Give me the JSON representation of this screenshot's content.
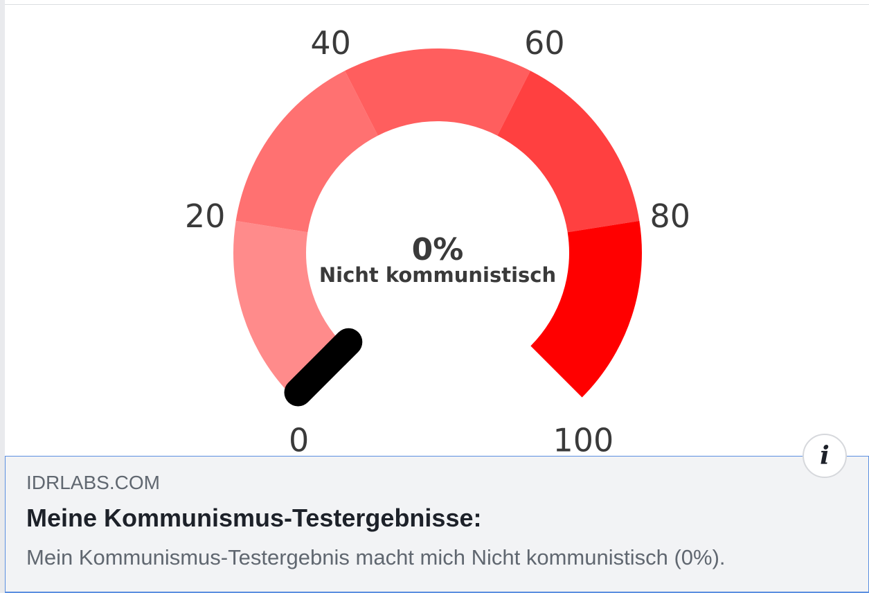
{
  "gauge": {
    "value": 0,
    "value_label": "0%",
    "caption": "Nicht kommunistisch",
    "min": 0,
    "max": 100,
    "tick_labels": [
      "0",
      "20",
      "40",
      "60",
      "80",
      "100"
    ],
    "segment_colors": [
      "#ff8b8b",
      "#ff7171",
      "#ff5e5e",
      "#ff4040",
      "#ff0000"
    ],
    "needle_color": "#000000"
  },
  "card": {
    "domain": "IDRLABS.COM",
    "title": "Meine Kommunismus-Testergebnisse:",
    "description": "Mein Kommunismus-Testergebnis macht mich Nicht kommunistisch (0%)."
  },
  "info_button": {
    "icon": "info-icon",
    "glyph": "i"
  }
}
